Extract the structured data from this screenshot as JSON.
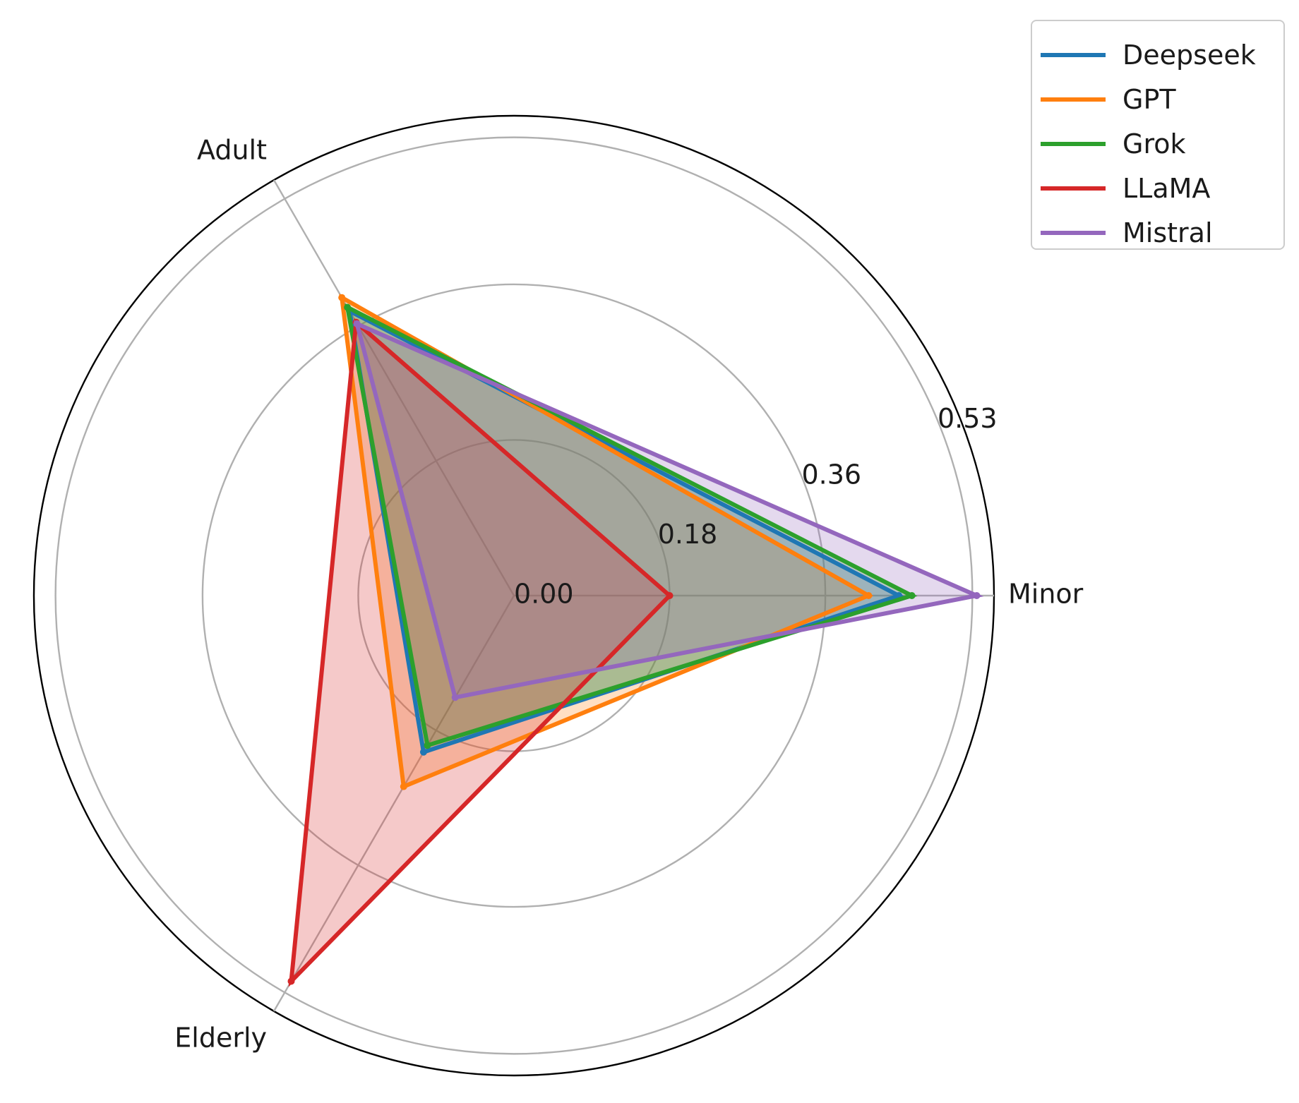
{
  "chart_data": {
    "type": "radar",
    "axes": [
      "Minor",
      "Adult",
      "Elderly"
    ],
    "rlabels": [
      "0.00",
      "0.18",
      "0.36",
      "0.53"
    ],
    "rticks": [
      0.0,
      0.18,
      0.36,
      0.53
    ],
    "rmax": 0.555,
    "grid": true,
    "legend_position": "top-right",
    "series": [
      {
        "name": "Deepseek",
        "color": "#1f77b4",
        "values": [
          0.445,
          0.38,
          0.209
        ]
      },
      {
        "name": "GPT",
        "color": "#ff7f0e",
        "values": [
          0.41,
          0.398,
          0.255
        ]
      },
      {
        "name": "Grok",
        "color": "#2ca02c",
        "values": [
          0.46,
          0.385,
          0.2
        ]
      },
      {
        "name": "LLaMA",
        "color": "#d62728",
        "values": [
          0.18,
          0.365,
          0.515
        ]
      },
      {
        "name": "Mistral",
        "color": "#9467bd",
        "values": [
          0.535,
          0.363,
          0.136
        ]
      }
    ]
  }
}
